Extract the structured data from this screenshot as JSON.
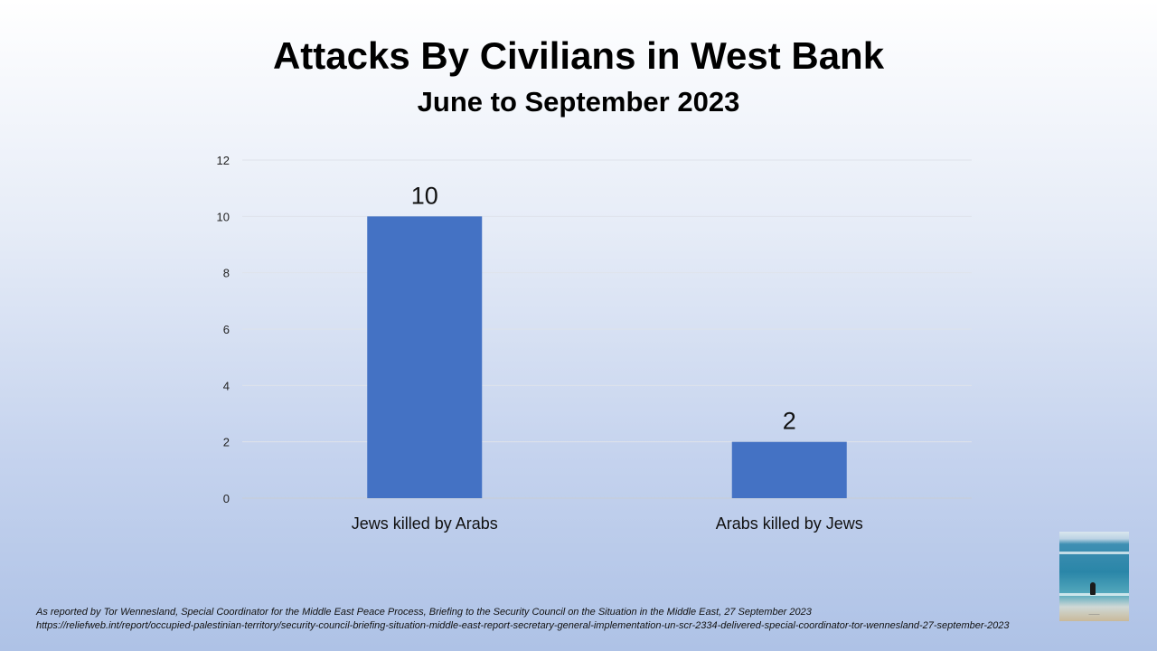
{
  "chart_data": {
    "type": "bar",
    "title": "Attacks By Civilians in West Bank",
    "subtitle": "June to September 2023",
    "categories": [
      "Jews killed by Arabs",
      "Arabs killed by Jews"
    ],
    "values": [
      10,
      2
    ],
    "data_labels": [
      "10",
      "2"
    ],
    "ylim": [
      0,
      12
    ],
    "yticks": [
      0,
      2,
      4,
      6,
      8,
      10,
      12
    ],
    "grid": true,
    "legend": "none",
    "bar_color": "#4472c4"
  },
  "footnotes": {
    "line1": "As reported by Tor Wennesland, Special Coordinator for the Middle East Peace Process,  Briefing to the Security Council on the Situation in the Middle East, 27 September 2023",
    "line2": "https://reliefweb.int/report/occupied-palestinian-territory/security-council-briefing-situation-middle-east-report-secretary-general-implementation-un-scr-2334-delivered-special-coordinator-tor-wennesland-27-september-2023"
  }
}
